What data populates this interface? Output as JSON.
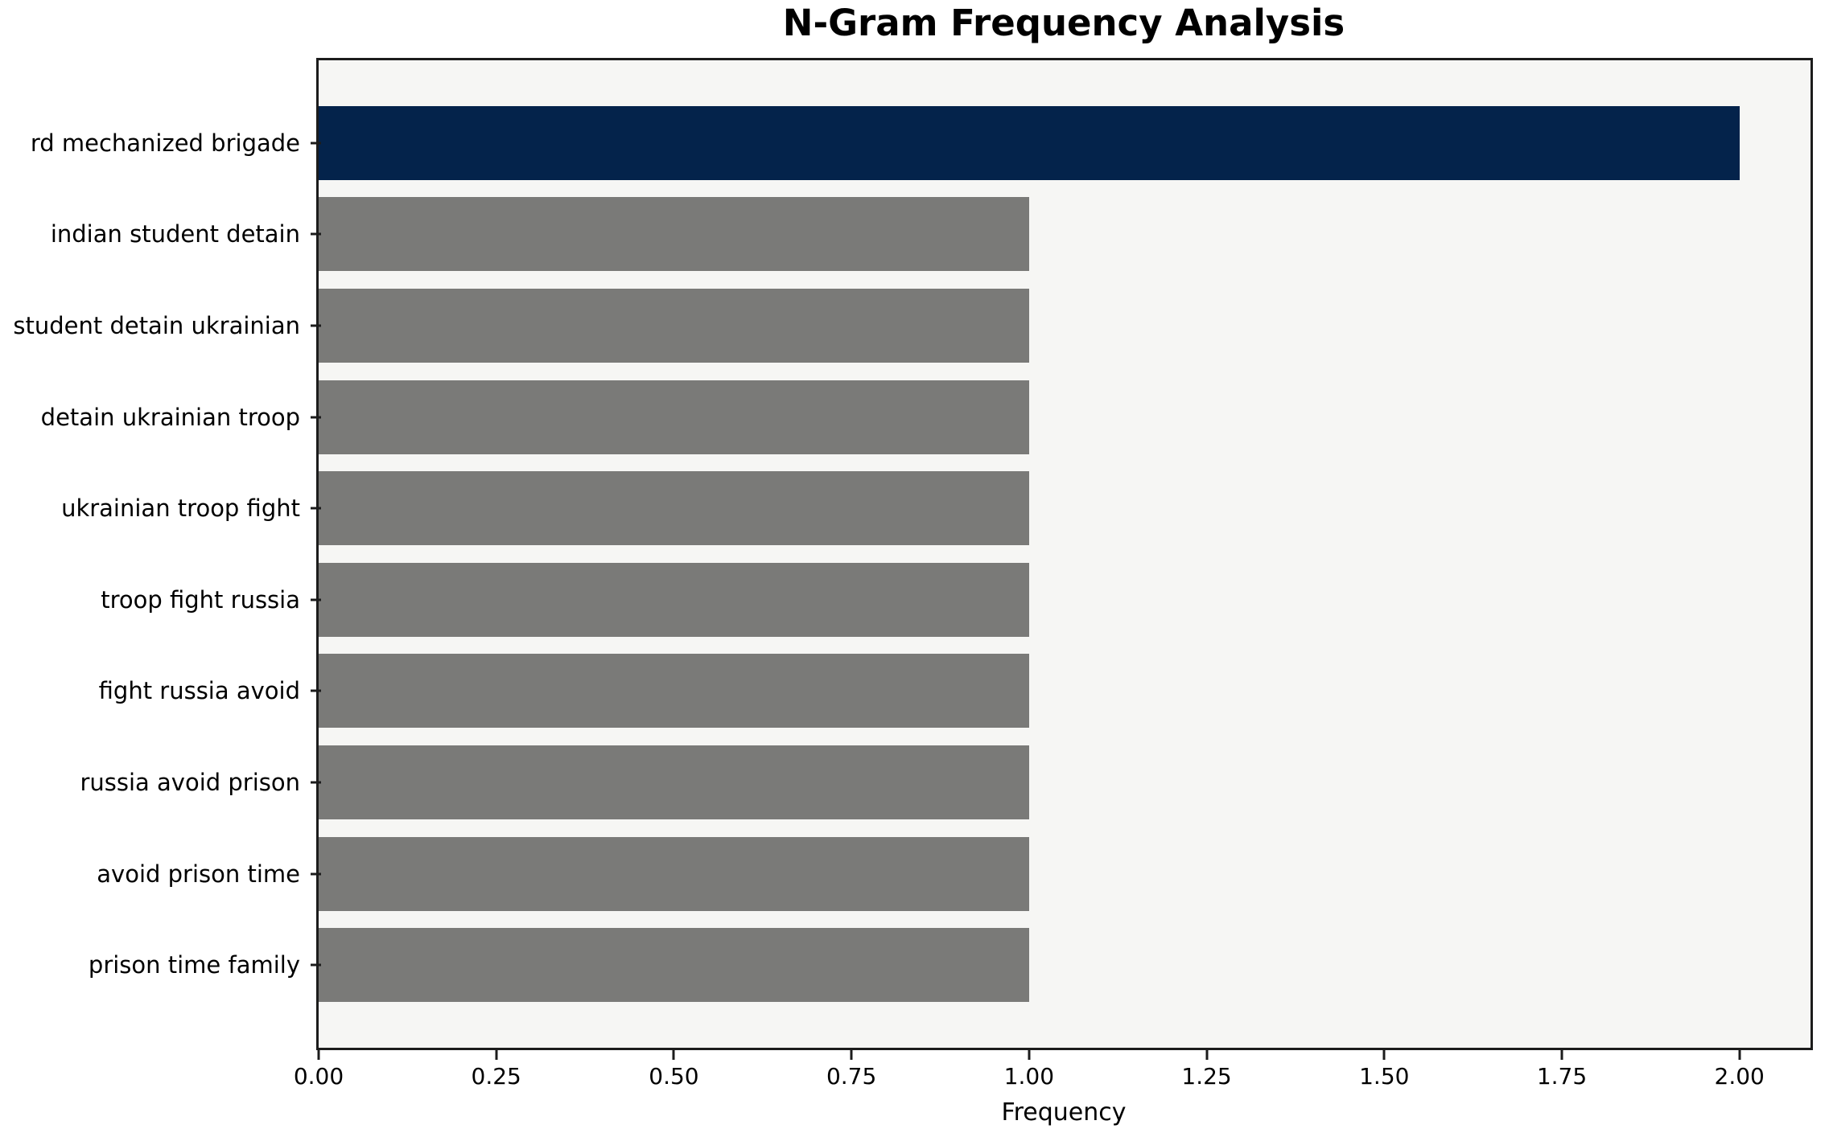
{
  "chart_data": {
    "type": "bar",
    "orientation": "horizontal",
    "title": "N-Gram Frequency Analysis",
    "xlabel": "Frequency",
    "ylabel": "",
    "categories": [
      "rd mechanized brigade",
      "indian student detain",
      "student detain ukrainian",
      "detain ukrainian troop",
      "ukrainian troop fight",
      "troop fight russia",
      "fight russia avoid",
      "russia avoid prison",
      "avoid prison time",
      "prison time family"
    ],
    "values": [
      2,
      1,
      1,
      1,
      1,
      1,
      1,
      1,
      1,
      1
    ],
    "bar_colors": [
      "#04234b",
      "#7a7a78",
      "#7a7a78",
      "#7a7a78",
      "#7a7a78",
      "#7a7a78",
      "#7a7a78",
      "#7a7a78",
      "#7a7a78",
      "#7a7a78"
    ],
    "xlim": [
      0,
      2.1
    ],
    "x_ticks": [
      0,
      0.25,
      0.5,
      0.75,
      1.0,
      1.25,
      1.5,
      1.75,
      2.0
    ],
    "x_tick_labels": [
      "0.00",
      "0.25",
      "0.50",
      "0.75",
      "1.00",
      "1.25",
      "1.50",
      "1.75",
      "2.00"
    ],
    "grid": false,
    "legend": null,
    "colors": {
      "highlight_bar": "#04234b",
      "default_bar": "#7a7a78",
      "plot_background": "#f6f6f4",
      "figure_background": "#ffffff",
      "spine": "#1c1c1c",
      "text": "#000000"
    }
  }
}
